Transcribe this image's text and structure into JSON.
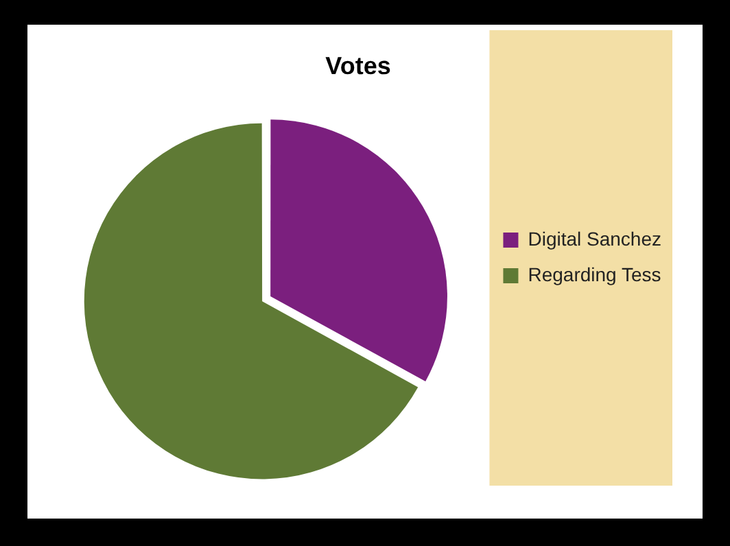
{
  "chart_data": {
    "type": "pie",
    "title": "Votes",
    "categories": [
      "Digital Sanchez",
      "Regarding Tess"
    ],
    "values": [
      33,
      67
    ],
    "colors": [
      "#7b1f7e",
      "#5f7a35"
    ],
    "legend": "right"
  }
}
